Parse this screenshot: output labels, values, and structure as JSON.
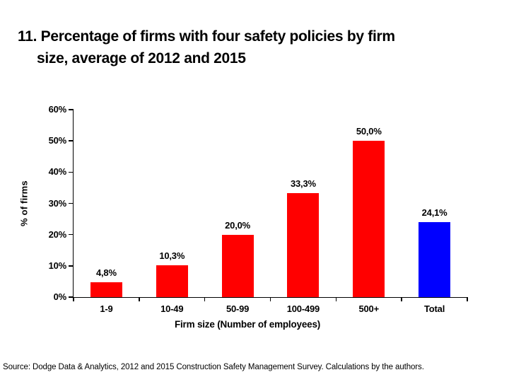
{
  "title": {
    "line1": "11. Percentage of firms with four safety policies by firm",
    "line2": "size, average of 2012 and 2015"
  },
  "chart_data": {
    "type": "bar",
    "categories": [
      "1-9",
      "10-49",
      "50-99",
      "100-499",
      "500+",
      "Total"
    ],
    "values": [
      4.8,
      10.3,
      20.0,
      33.3,
      50.0,
      24.1
    ],
    "value_labels": [
      "4,8%",
      "10,3%",
      "20,0%",
      "33,3%",
      "50,0%",
      "24,1%"
    ],
    "bar_colors": [
      "#ff0000",
      "#ff0000",
      "#ff0000",
      "#ff0000",
      "#ff0000",
      "#0000ff"
    ],
    "title": "",
    "xlabel": "Firm size (Number of employees)",
    "ylabel": "% of firms",
    "ylim": [
      0,
      60
    ],
    "ytick_step": 10,
    "ytick_labels": [
      "60%",
      "50%",
      "40%",
      "30%",
      "20%",
      "10%",
      "0%"
    ],
    "grid": false,
    "legend": false
  },
  "source": "Source: Dodge Data & Analytics, 2012 and 2015 Construction Safety Management Survey.  Calculations by the authors.",
  "colors": {
    "bar_red": "#ff0000",
    "bar_blue": "#0000ff",
    "axis": "#000000",
    "text": "#000000"
  }
}
